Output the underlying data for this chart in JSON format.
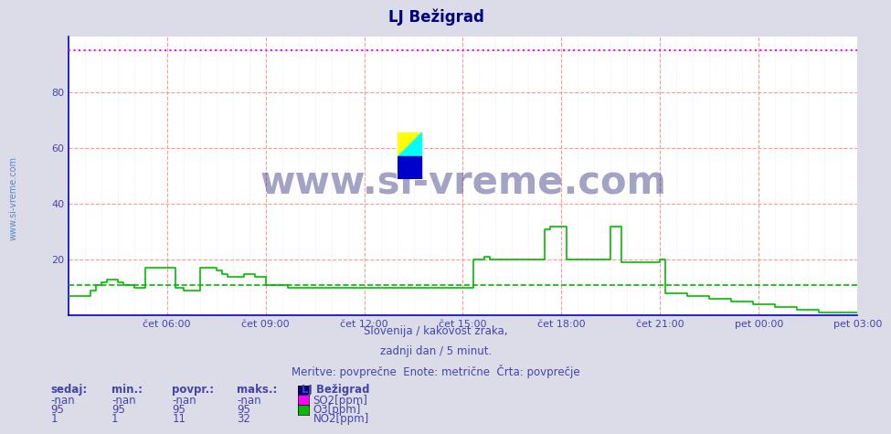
{
  "title": "LJ Bežigrad",
  "background_color": "#dcdce8",
  "plot_bg_color": "#ffffff",
  "title_color": "#000080",
  "title_fontsize": 12,
  "xlim": [
    0,
    288
  ],
  "ylim": [
    0,
    100
  ],
  "yticks": [
    20,
    40,
    60,
    80
  ],
  "xtick_labels": [
    "čet 06:00",
    "čet 09:00",
    "čet 12:00",
    "čet 15:00",
    "čet 18:00",
    "čet 21:00",
    "pet 00:00",
    "pet 03:00"
  ],
  "xtick_positions": [
    36,
    72,
    108,
    144,
    180,
    216,
    252,
    288
  ],
  "grid_color_main": "#ff9999",
  "grid_color_sub": "#ffcccc",
  "o3_color": "#ff00ff",
  "o3_value": 95,
  "no2_color": "#00bb00",
  "so2_color": "#000080",
  "watermark_text": "www.si-vreme.com",
  "watermark_color": "#1a1a6e",
  "subtitle1": "Slovenija / kakovost zraka,",
  "subtitle2": "zadnji dan / 5 minut.",
  "subtitle3": "Meritve: povprečne  Enote: metrične  Črta: povprečje",
  "subtitle_color": "#4444aa",
  "legend_title": "LJ Bežigrad",
  "legend_color": "#4444aa",
  "table_headers": [
    "sedaj:",
    "min.:",
    "povpr.:",
    "maks.:"
  ],
  "table_rows": [
    [
      "-nan",
      "-nan",
      "-nan",
      "-nan",
      "#000080",
      "SO2[ppm]"
    ],
    [
      "95",
      "95",
      "95",
      "95",
      "#ff00ff",
      "O3[ppm]"
    ],
    [
      "1",
      "1",
      "11",
      "32",
      "#00bb00",
      "NO2[ppm]"
    ]
  ],
  "no2_data": [
    7,
    7,
    7,
    7,
    7,
    7,
    7,
    7,
    9,
    9,
    11,
    11,
    12,
    12,
    13,
    13,
    13,
    13,
    12,
    12,
    11,
    11,
    11,
    11,
    10,
    10,
    10,
    10,
    17,
    17,
    17,
    17,
    17,
    17,
    17,
    17,
    17,
    17,
    17,
    10,
    10,
    10,
    9,
    9,
    9,
    9,
    9,
    9,
    17,
    17,
    17,
    17,
    17,
    17,
    16,
    16,
    15,
    15,
    14,
    14,
    14,
    14,
    14,
    14,
    15,
    15,
    15,
    15,
    14,
    14,
    14,
    14,
    11,
    11,
    11,
    11,
    11,
    11,
    11,
    11,
    10,
    10,
    10,
    10,
    10,
    10,
    10,
    10,
    10,
    10,
    10,
    10,
    10,
    10,
    10,
    10,
    10,
    10,
    10,
    10,
    10,
    10,
    10,
    10,
    10,
    10,
    10,
    10,
    10,
    10,
    10,
    10,
    10,
    10,
    10,
    10,
    10,
    10,
    10,
    10,
    10,
    10,
    10,
    10,
    10,
    10,
    10,
    10,
    10,
    10,
    10,
    10,
    10,
    10,
    10,
    10,
    10,
    10,
    10,
    10,
    10,
    10,
    10,
    10,
    10,
    10,
    10,
    10,
    20,
    20,
    20,
    20,
    21,
    21,
    20,
    20,
    20,
    20,
    20,
    20,
    20,
    20,
    20,
    20,
    20,
    20,
    20,
    20,
    20,
    20,
    20,
    20,
    20,
    20,
    31,
    31,
    32,
    32,
    32,
    32,
    32,
    32,
    20,
    20,
    20,
    20,
    20,
    20,
    20,
    20,
    20,
    20,
    20,
    20,
    20,
    20,
    20,
    20,
    32,
    32,
    32,
    32,
    19,
    19,
    19,
    19,
    19,
    19,
    19,
    19,
    19,
    19,
    19,
    19,
    19,
    19,
    20,
    20,
    8,
    8,
    8,
    8,
    8,
    8,
    8,
    8,
    7,
    7,
    7,
    7,
    7,
    7,
    7,
    7,
    6,
    6,
    6,
    6,
    6,
    6,
    6,
    6,
    5,
    5,
    5,
    5,
    5,
    5,
    5,
    5,
    4,
    4,
    4,
    4,
    4,
    4,
    4,
    4,
    3,
    3,
    3,
    3,
    3,
    3,
    3,
    3,
    2,
    2,
    2,
    2,
    2,
    2,
    2,
    2,
    1,
    1,
    1,
    1,
    1,
    1,
    1,
    1,
    1,
    1,
    1,
    1,
    1,
    1,
    1
  ],
  "no2_avg_value": 11,
  "axis_color": "#0000cc",
  "yaxis_label": "www.si-vreme.com",
  "yaxis_label_color": "#5588cc"
}
